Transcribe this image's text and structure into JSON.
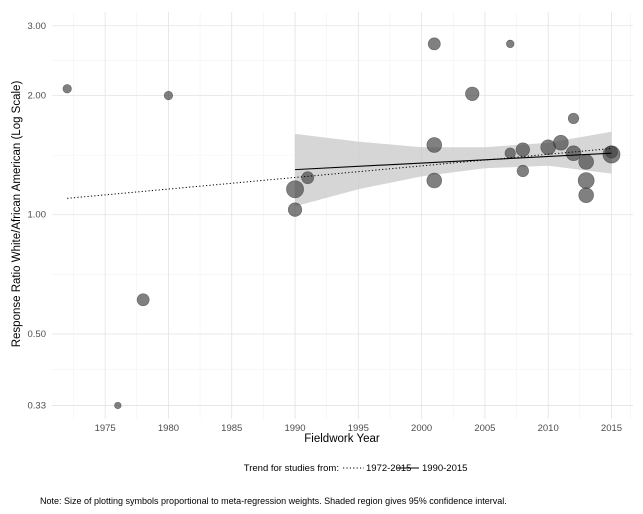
{
  "chart_data": {
    "type": "scatter",
    "xlabel": "Fieldwork Year",
    "ylabel": "Response Ratio White/African American (Log Scale)",
    "y_scale": "log",
    "xlim": [
      1970.8,
      2016.7
    ],
    "ylim": [
      0.305,
      3.25
    ],
    "x_ticks": [
      1975,
      1980,
      1985,
      1990,
      1995,
      2000,
      2005,
      2010,
      2015
    ],
    "x_tick_labels": [
      "1975",
      "1980",
      "1985",
      "1990",
      "1995",
      "2000",
      "2005",
      "2010",
      "2015"
    ],
    "y_ticks": [
      0.33,
      0.5,
      1.0,
      2.0,
      3.0
    ],
    "y_tick_labels": [
      "0.33",
      "0.50",
      "1.00",
      "2.00",
      "3.00"
    ],
    "points": [
      {
        "x": 1972,
        "y": 2.08,
        "weight": 1
      },
      {
        "x": 1976,
        "y": 0.33,
        "weight": 0.6
      },
      {
        "x": 1978,
        "y": 0.61,
        "weight": 2
      },
      {
        "x": 1980,
        "y": 2.0,
        "weight": 1
      },
      {
        "x": 1990,
        "y": 1.16,
        "weight": 4
      },
      {
        "x": 1990,
        "y": 1.03,
        "weight": 2.5
      },
      {
        "x": 1991,
        "y": 1.24,
        "weight": 2
      },
      {
        "x": 2001,
        "y": 2.7,
        "weight": 2
      },
      {
        "x": 2001,
        "y": 1.5,
        "weight": 3
      },
      {
        "x": 2001,
        "y": 1.22,
        "weight": 3
      },
      {
        "x": 2004,
        "y": 2.02,
        "weight": 2.5
      },
      {
        "x": 2007,
        "y": 2.7,
        "weight": 0.8
      },
      {
        "x": 2007,
        "y": 1.43,
        "weight": 1.5
      },
      {
        "x": 2008,
        "y": 1.46,
        "weight": 2.5
      },
      {
        "x": 2008,
        "y": 1.29,
        "weight": 1.8
      },
      {
        "x": 2010,
        "y": 1.48,
        "weight": 3
      },
      {
        "x": 2011,
        "y": 1.52,
        "weight": 3
      },
      {
        "x": 2012,
        "y": 1.75,
        "weight": 1.5
      },
      {
        "x": 2012,
        "y": 1.43,
        "weight": 3
      },
      {
        "x": 2013,
        "y": 1.36,
        "weight": 3
      },
      {
        "x": 2013,
        "y": 1.22,
        "weight": 3.5
      },
      {
        "x": 2013,
        "y": 1.12,
        "weight": 3
      },
      {
        "x": 2015,
        "y": 1.42,
        "weight": 4
      },
      {
        "x": 2015,
        "y": 1.44,
        "weight": 2
      }
    ],
    "trend_1972_2015": {
      "x": [
        1972,
        2015
      ],
      "y": [
        1.1,
        1.47
      ]
    },
    "trend_1990_2015": {
      "x": [
        1990,
        2015
      ],
      "y": [
        1.3,
        1.43
      ]
    },
    "ci_1990_2015": {
      "x": [
        1990,
        1995,
        2000,
        2005,
        2010,
        2015
      ],
      "upper": [
        1.6,
        1.53,
        1.48,
        1.48,
        1.52,
        1.62
      ],
      "lower": [
        1.05,
        1.16,
        1.25,
        1.31,
        1.33,
        1.27
      ]
    },
    "point_color": "#3c3c3c",
    "ci_color": "#c8c8c8"
  },
  "legend": {
    "title": "Trend for studies from:",
    "items": [
      {
        "label": "1972-2015",
        "style": "dotted"
      },
      {
        "label": "1990-2015",
        "style": "solid"
      }
    ]
  },
  "note": "Note: Size of plotting symbols proportional to meta-regression weights. Shaded region gives 95% confidence interval."
}
